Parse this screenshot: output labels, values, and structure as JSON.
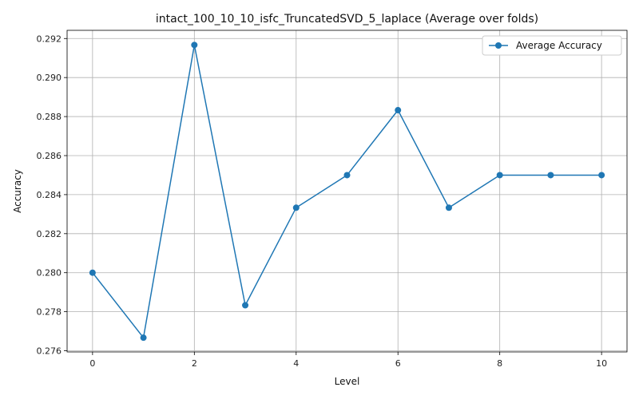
{
  "chart_data": {
    "type": "line",
    "title": "intact_100_10_10_isfc_TruncatedSVD_5_laplace (Average over folds)",
    "xlabel": "Level",
    "ylabel": "Accuracy",
    "x": [
      0,
      1,
      2,
      3,
      4,
      5,
      6,
      7,
      8,
      9,
      10
    ],
    "series": [
      {
        "name": "Average Accuracy",
        "values": [
          0.28,
          0.27667,
          0.29167,
          0.27833,
          0.28333,
          0.285,
          0.28833,
          0.28333,
          0.285,
          0.285,
          0.285
        ],
        "color": "#1f77b4",
        "marker": "circle"
      }
    ],
    "xlim": [
      -0.5,
      10.5
    ],
    "ylim": [
      0.27594,
      0.29242
    ],
    "xticks": [
      0,
      2,
      4,
      6,
      8,
      10
    ],
    "xtick_labels": [
      "0",
      "2",
      "4",
      "6",
      "8",
      "10"
    ],
    "yticks": [
      0.276,
      0.278,
      0.28,
      0.282,
      0.284,
      0.286,
      0.288,
      0.29,
      0.292
    ],
    "ytick_labels": [
      "0.276",
      "0.278",
      "0.280",
      "0.282",
      "0.284",
      "0.286",
      "0.288",
      "0.290",
      "0.292"
    ],
    "grid": true,
    "legend_position": "top-right"
  }
}
